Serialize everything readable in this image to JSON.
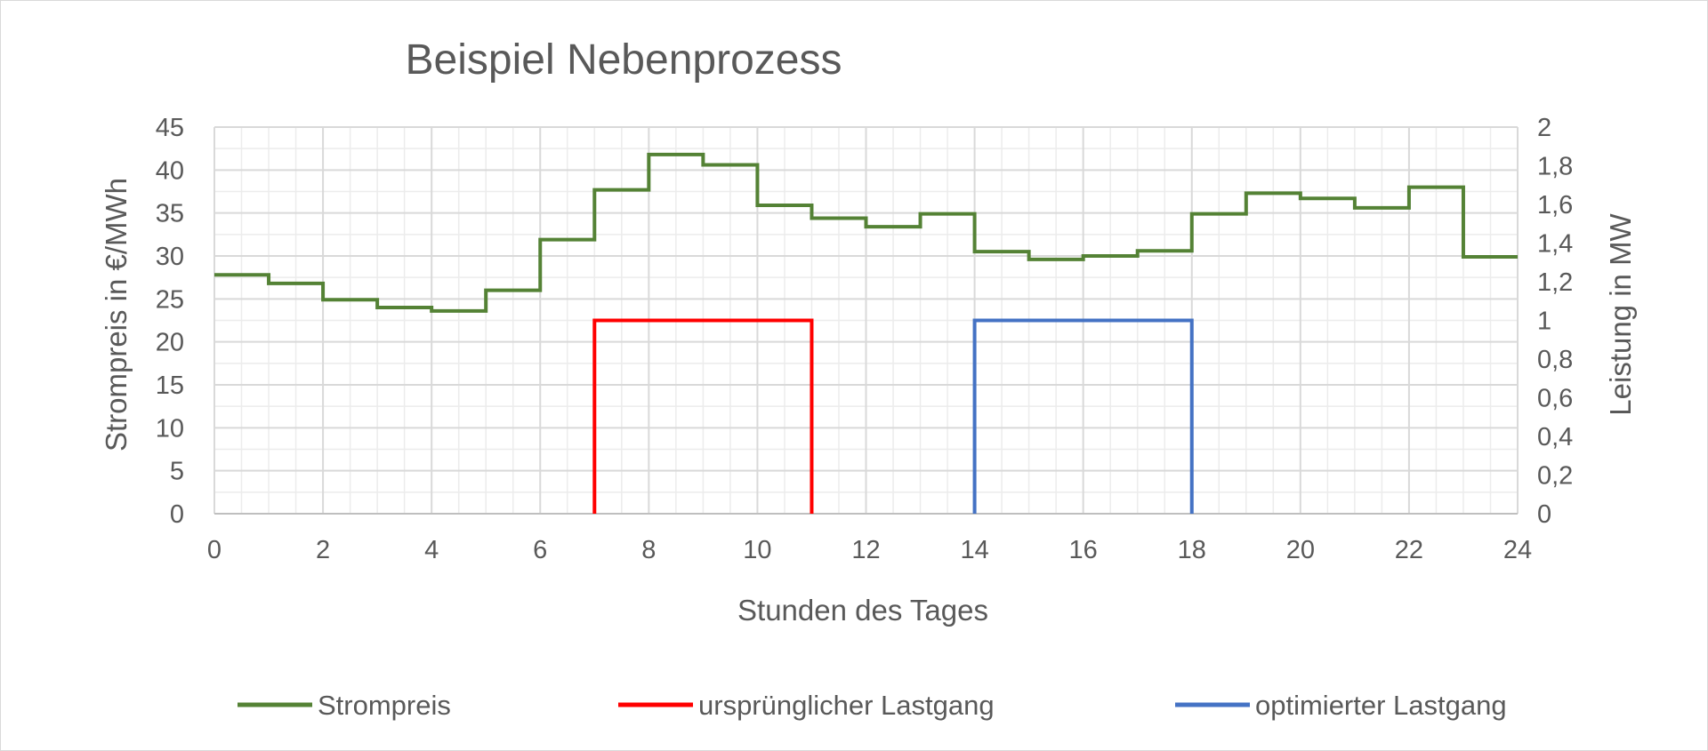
{
  "chart_data": {
    "type": "line",
    "title": "Beispiel Nebenprozess",
    "xlabel": "Stunden des Tages",
    "ylabel": "Strompreis in €/MWh",
    "y2label": "Leistung in MW",
    "xlim": [
      0,
      24
    ],
    "ylim": [
      0,
      45
    ],
    "y2lim": [
      0,
      2
    ],
    "x_ticks": [
      "0",
      "2",
      "4",
      "6",
      "8",
      "10",
      "12",
      "14",
      "16",
      "18",
      "20",
      "22",
      "24"
    ],
    "y_ticks": [
      "0",
      "5",
      "10",
      "15",
      "20",
      "25",
      "30",
      "35",
      "40",
      "45"
    ],
    "y2_ticks": [
      "0",
      "0,2",
      "0,4",
      "0,6",
      "0,8",
      "1",
      "1,2",
      "1,4",
      "1,6",
      "1,8",
      "2"
    ],
    "grid": true,
    "legend_position": "bottom",
    "series": [
      {
        "name": "Strompreis",
        "axis": "left",
        "step": true,
        "color": "#548235",
        "x": [
          0,
          1,
          2,
          3,
          4,
          5,
          6,
          7,
          8,
          9,
          10,
          11,
          12,
          13,
          14,
          15,
          16,
          17,
          18,
          19,
          20,
          21,
          22,
          23,
          24
        ],
        "y": [
          27.8,
          26.8,
          24.9,
          24.0,
          23.6,
          26.0,
          31.9,
          37.7,
          41.8,
          40.6,
          35.9,
          34.4,
          33.4,
          34.9,
          30.5,
          29.6,
          30.0,
          30.6,
          34.9,
          37.3,
          36.7,
          35.6,
          38.0,
          29.9,
          29.9
        ]
      },
      {
        "name": "ursprünglicher Lastgang",
        "axis": "right",
        "step": true,
        "color": "#ff0000",
        "x": [
          7,
          7,
          11,
          11
        ],
        "y": [
          0,
          1,
          1,
          0
        ]
      },
      {
        "name": "optimierter Lastgang",
        "axis": "right",
        "step": true,
        "color": "#4472c4",
        "x": [
          14,
          14,
          18,
          18
        ],
        "y": [
          0,
          1,
          1,
          0
        ]
      }
    ]
  }
}
